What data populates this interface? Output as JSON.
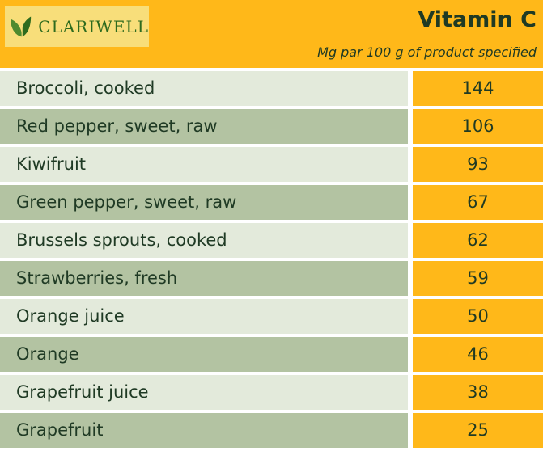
{
  "logo": {
    "text": "CLARIWELL",
    "icon": "leaf-icon",
    "brand_color": "#2E6B1E"
  },
  "chart_data": {
    "type": "table",
    "title": "Vitamin C",
    "subtitle": "Mg par 100 g of product specified",
    "categories": [
      "Broccoli, cooked",
      "Red pepper, sweet, raw",
      "Kiwifruit",
      "Green pepper, sweet, raw",
      "Brussels sprouts, cooked",
      "Strawberries, fresh",
      "Orange juice",
      "Orange",
      "Grapefruit juice",
      "Grapefruit"
    ],
    "values": [
      144,
      106,
      93,
      67,
      62,
      59,
      50,
      46,
      38,
      25
    ]
  },
  "colors": {
    "accent": "#FFB819",
    "row_light": "#E3EADB",
    "row_dark": "#B3C3A2",
    "text": "#1F3A24"
  }
}
